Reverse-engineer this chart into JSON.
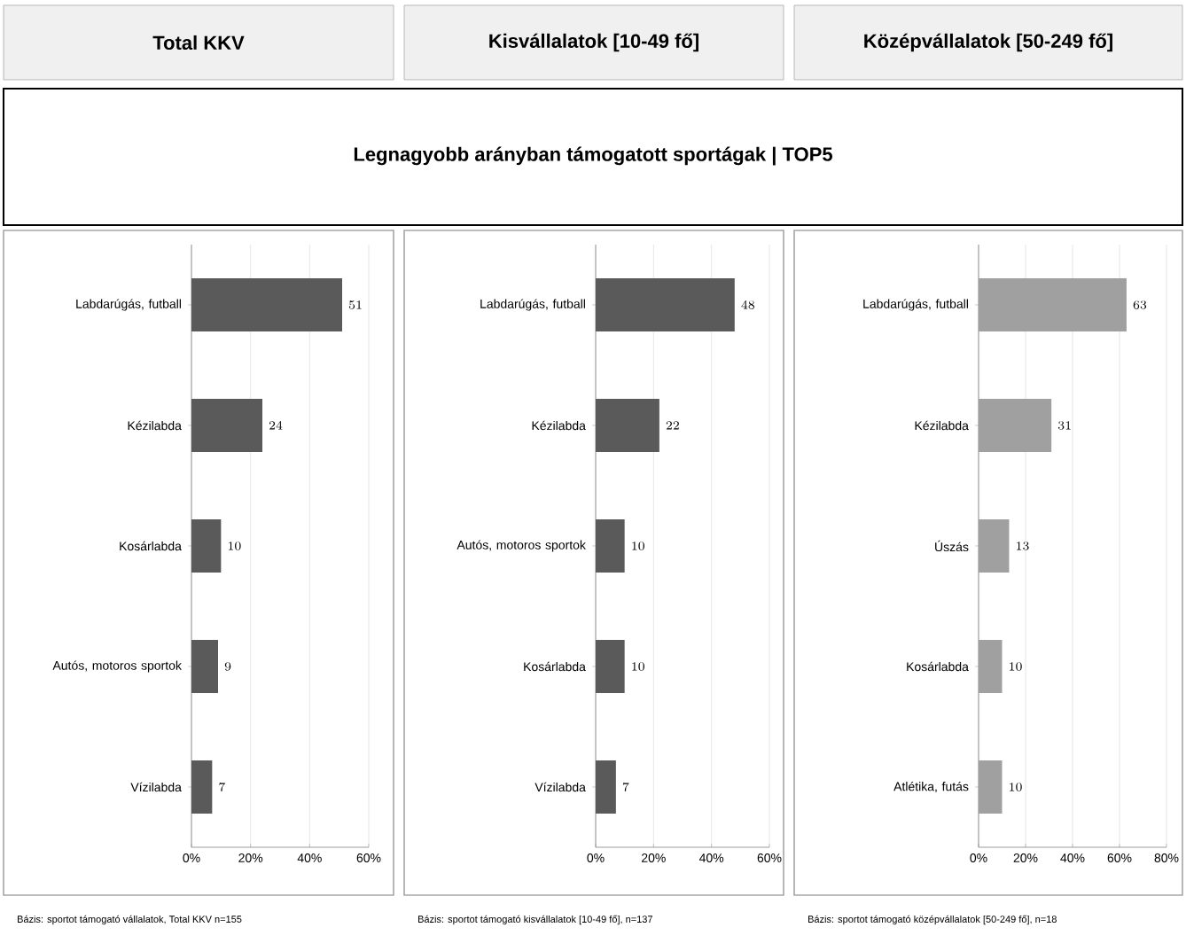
{
  "chart_data": [
    {
      "type": "bar",
      "orientation": "horizontal",
      "title": "Total KKV",
      "subtitle": "Legnagyobb arányban támogatott sportágak | TOP5",
      "categories": [
        "Labdarúgás, futball",
        "Kézilabda",
        "Kosárlabda",
        "Autós, motoros sportok",
        "Vízilabda"
      ],
      "values": [
        51,
        24,
        10,
        9,
        7
      ],
      "color": "#5a5a5a",
      "xlim": [
        0,
        60
      ],
      "xticks": [
        {
          "value": 0,
          "label": "0%"
        },
        {
          "value": 20,
          "label": "20%"
        },
        {
          "value": 40,
          "label": "40%"
        },
        {
          "value": 60,
          "label": "60%"
        }
      ],
      "grid": "x",
      "data_labels": true,
      "annotations": [
        "Bázis: sportot támogató vállalatok, Total KKV n=155"
      ]
    },
    {
      "type": "bar",
      "orientation": "horizontal",
      "title": "Kisvállalatok [10-49 fő]",
      "categories": [
        "Labdarúgás, futball",
        "Kézilabda",
        "Autós, motoros sportok",
        "Kosárlabda",
        "Vízilabda"
      ],
      "values": [
        48,
        22,
        10,
        10,
        7
      ],
      "color": "#5a5a5a",
      "xlim": [
        0,
        60
      ],
      "xticks": [
        {
          "value": 0,
          "label": "0%"
        },
        {
          "value": 20,
          "label": "20%"
        },
        {
          "value": 40,
          "label": "40%"
        },
        {
          "value": 60,
          "label": "60%"
        }
      ],
      "grid": "x",
      "data_labels": true,
      "annotations": [
        "Bázis: sportot támogató kisvállalatok [10-49 fő], n=137"
      ]
    },
    {
      "type": "bar",
      "orientation": "horizontal",
      "title": "Középvállalatok [50-249 fő]",
      "categories": [
        "Labdarúgás, futball",
        "Kézilabda",
        "Úszás",
        "Kosárlabda",
        "Atlétika, futás"
      ],
      "values": [
        63,
        31,
        13,
        10,
        10
      ],
      "color": "#a0a0a0",
      "xlim": [
        0,
        80
      ],
      "xticks": [
        {
          "value": 0,
          "label": "0%"
        },
        {
          "value": 20,
          "label": "20%"
        },
        {
          "value": 40,
          "label": "40%"
        },
        {
          "value": 60,
          "label": "60%"
        },
        {
          "value": 80,
          "label": "80%"
        }
      ],
      "grid": "x",
      "data_labels": true,
      "annotations": [
        "Bázis: sportot támogató középvállalatok [50-249 fő], n=18"
      ]
    }
  ]
}
